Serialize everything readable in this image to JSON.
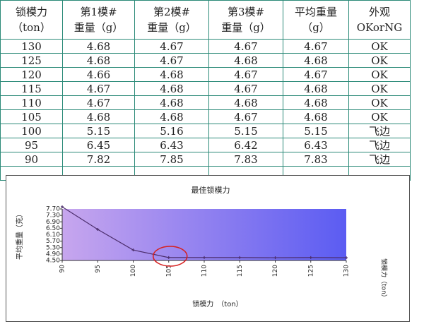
{
  "table": {
    "header": [
      [
        "锁模力",
        "（ton）"
      ],
      [
        "第1模#",
        "重量（g）"
      ],
      [
        "第2模#",
        "重量（g）"
      ],
      [
        "第3模#",
        "重量（g）"
      ],
      [
        "平均重量",
        "（g）"
      ],
      [
        "外观",
        "OKorNG"
      ]
    ],
    "rows": [
      [
        "130",
        "4.68",
        "4.67",
        "4.67",
        "4.67",
        "OK"
      ],
      [
        "125",
        "4.68",
        "4.67",
        "4.68",
        "4.68",
        "OK"
      ],
      [
        "120",
        "4.66",
        "4.68",
        "4.67",
        "4.67",
        "OK"
      ],
      [
        "115",
        "4.67",
        "4.68",
        "4.67",
        "4.68",
        "OK"
      ],
      [
        "110",
        "4.67",
        "4.68",
        "4.68",
        "4.68",
        "OK"
      ],
      [
        "105",
        "4.68",
        "4.68",
        "4.67",
        "4.68",
        "OK"
      ],
      [
        "100",
        "5.15",
        "5.16",
        "5.15",
        "5.15",
        "飞边"
      ],
      [
        "95",
        "6.45",
        "6.43",
        "6.42",
        "6.43",
        "飞边"
      ],
      [
        "90",
        "7.82",
        "7.85",
        "7.83",
        "7.83",
        "飞边"
      ]
    ]
  },
  "chart_data": {
    "type": "line",
    "title": "最佳锁模力",
    "x_label": "锁模力　（ton）",
    "y_label": "平均重量（克）",
    "x": [
      90,
      95,
      100,
      105,
      110,
      115,
      120,
      125,
      130
    ],
    "series": [
      {
        "name": "锁模力（ton）",
        "color": "#4b2d6b",
        "values": [
          7.83,
          6.43,
          5.15,
          4.68,
          4.68,
          4.68,
          4.67,
          4.68,
          4.67
        ]
      }
    ],
    "xlim": [
      90,
      130
    ],
    "xticks": [
      90,
      95,
      100,
      105,
      110,
      115,
      120,
      125,
      130
    ],
    "ylim": [
      4.5,
      7.7
    ],
    "yticks": [
      {
        "value": 4.5,
        "label": "4.50"
      },
      {
        "value": 4.9,
        "label": "4.90"
      },
      {
        "value": 5.3,
        "label": "5.30"
      },
      {
        "value": 5.7,
        "label": "5.70"
      },
      {
        "value": 6.1,
        "label": "6.10"
      },
      {
        "value": 6.5,
        "label": "6.50"
      },
      {
        "value": 6.9,
        "label": "6.90"
      },
      {
        "value": 7.3,
        "label": "7.30"
      },
      {
        "value": 7.7,
        "label": "7.70"
      }
    ]
  }
}
